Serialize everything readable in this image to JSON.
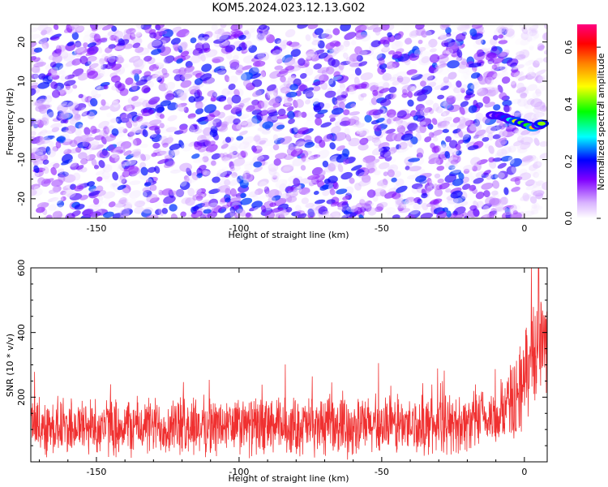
{
  "title": "KOM5.2024.023.12.13.G02",
  "colors": {
    "heatmap_base": "#8000ff",
    "snr_line": "#f03030",
    "colormap": [
      "#ffffff",
      "#8000ff",
      "#0000ff",
      "#00ffff",
      "#00ff00",
      "#ffff00",
      "#ff8000",
      "#ff0000",
      "#ff0080"
    ]
  },
  "chart_data": [
    {
      "type": "heatmap",
      "xlabel": "Height of straight line (km)",
      "ylabel": "Frequency (Hz)",
      "xlim": [
        -173,
        8
      ],
      "ylim": [
        -25,
        24.5
      ],
      "x_ticks": [
        -150,
        -100,
        -50,
        0
      ],
      "y_ticks": [
        -20,
        -10,
        0,
        10,
        20
      ],
      "colorbar": {
        "label": "Normalized spectral amplitude",
        "range": [
          0,
          0.68
        ],
        "ticks": [
          "0.0",
          "0.2",
          "0.4",
          "0.6"
        ]
      },
      "background_noise_amplitude_range": [
        0.0,
        0.12
      ],
      "signal_feature": {
        "description_free": true,
        "points": [
          {
            "x": -11,
            "y": 1.3,
            "amplitude": 0.08
          },
          {
            "x": -9,
            "y": 1.2,
            "amplitude": 0.15
          },
          {
            "x": -7,
            "y": 0.8,
            "amplitude": 0.22
          },
          {
            "x": -5,
            "y": 0.2,
            "amplitude": 0.3
          },
          {
            "x": -3,
            "y": -0.2,
            "amplitude": 0.45
          },
          {
            "x": -1,
            "y": -0.6,
            "amplitude": 0.4
          },
          {
            "x": 1,
            "y": -1.2,
            "amplitude": 0.38
          },
          {
            "x": 3,
            "y": -1.8,
            "amplitude": 0.5
          },
          {
            "x": 5,
            "y": -1.3,
            "amplitude": 0.3
          },
          {
            "x": 6,
            "y": -0.8,
            "amplitude": 0.42
          }
        ]
      }
    },
    {
      "type": "line",
      "xlabel": "Height of straight line (km)",
      "ylabel": "SNR (10 * v/v)",
      "xlim": [
        -173,
        8
      ],
      "ylim": [
        0,
        600
      ],
      "x_ticks": [
        -150,
        -100,
        -50,
        0
      ],
      "y_ticks": [
        200,
        400,
        600
      ],
      "series": [
        {
          "baseline_profile": [
            {
              "x": -173,
              "y": 110
            },
            {
              "x": -120,
              "y": 110
            },
            {
              "x": -60,
              "y": 110
            },
            {
              "x": -25,
              "y": 115
            },
            {
              "x": -10,
              "y": 135
            },
            {
              "x": -3,
              "y": 200
            },
            {
              "x": 0,
              "y": 260
            },
            {
              "x": 3,
              "y": 330
            },
            {
              "x": 6,
              "y": 380
            },
            {
              "x": 8,
              "y": 360
            }
          ],
          "noise_amplitude": 75,
          "peak_max": {
            "x": 5,
            "y": 600
          }
        }
      ]
    }
  ]
}
